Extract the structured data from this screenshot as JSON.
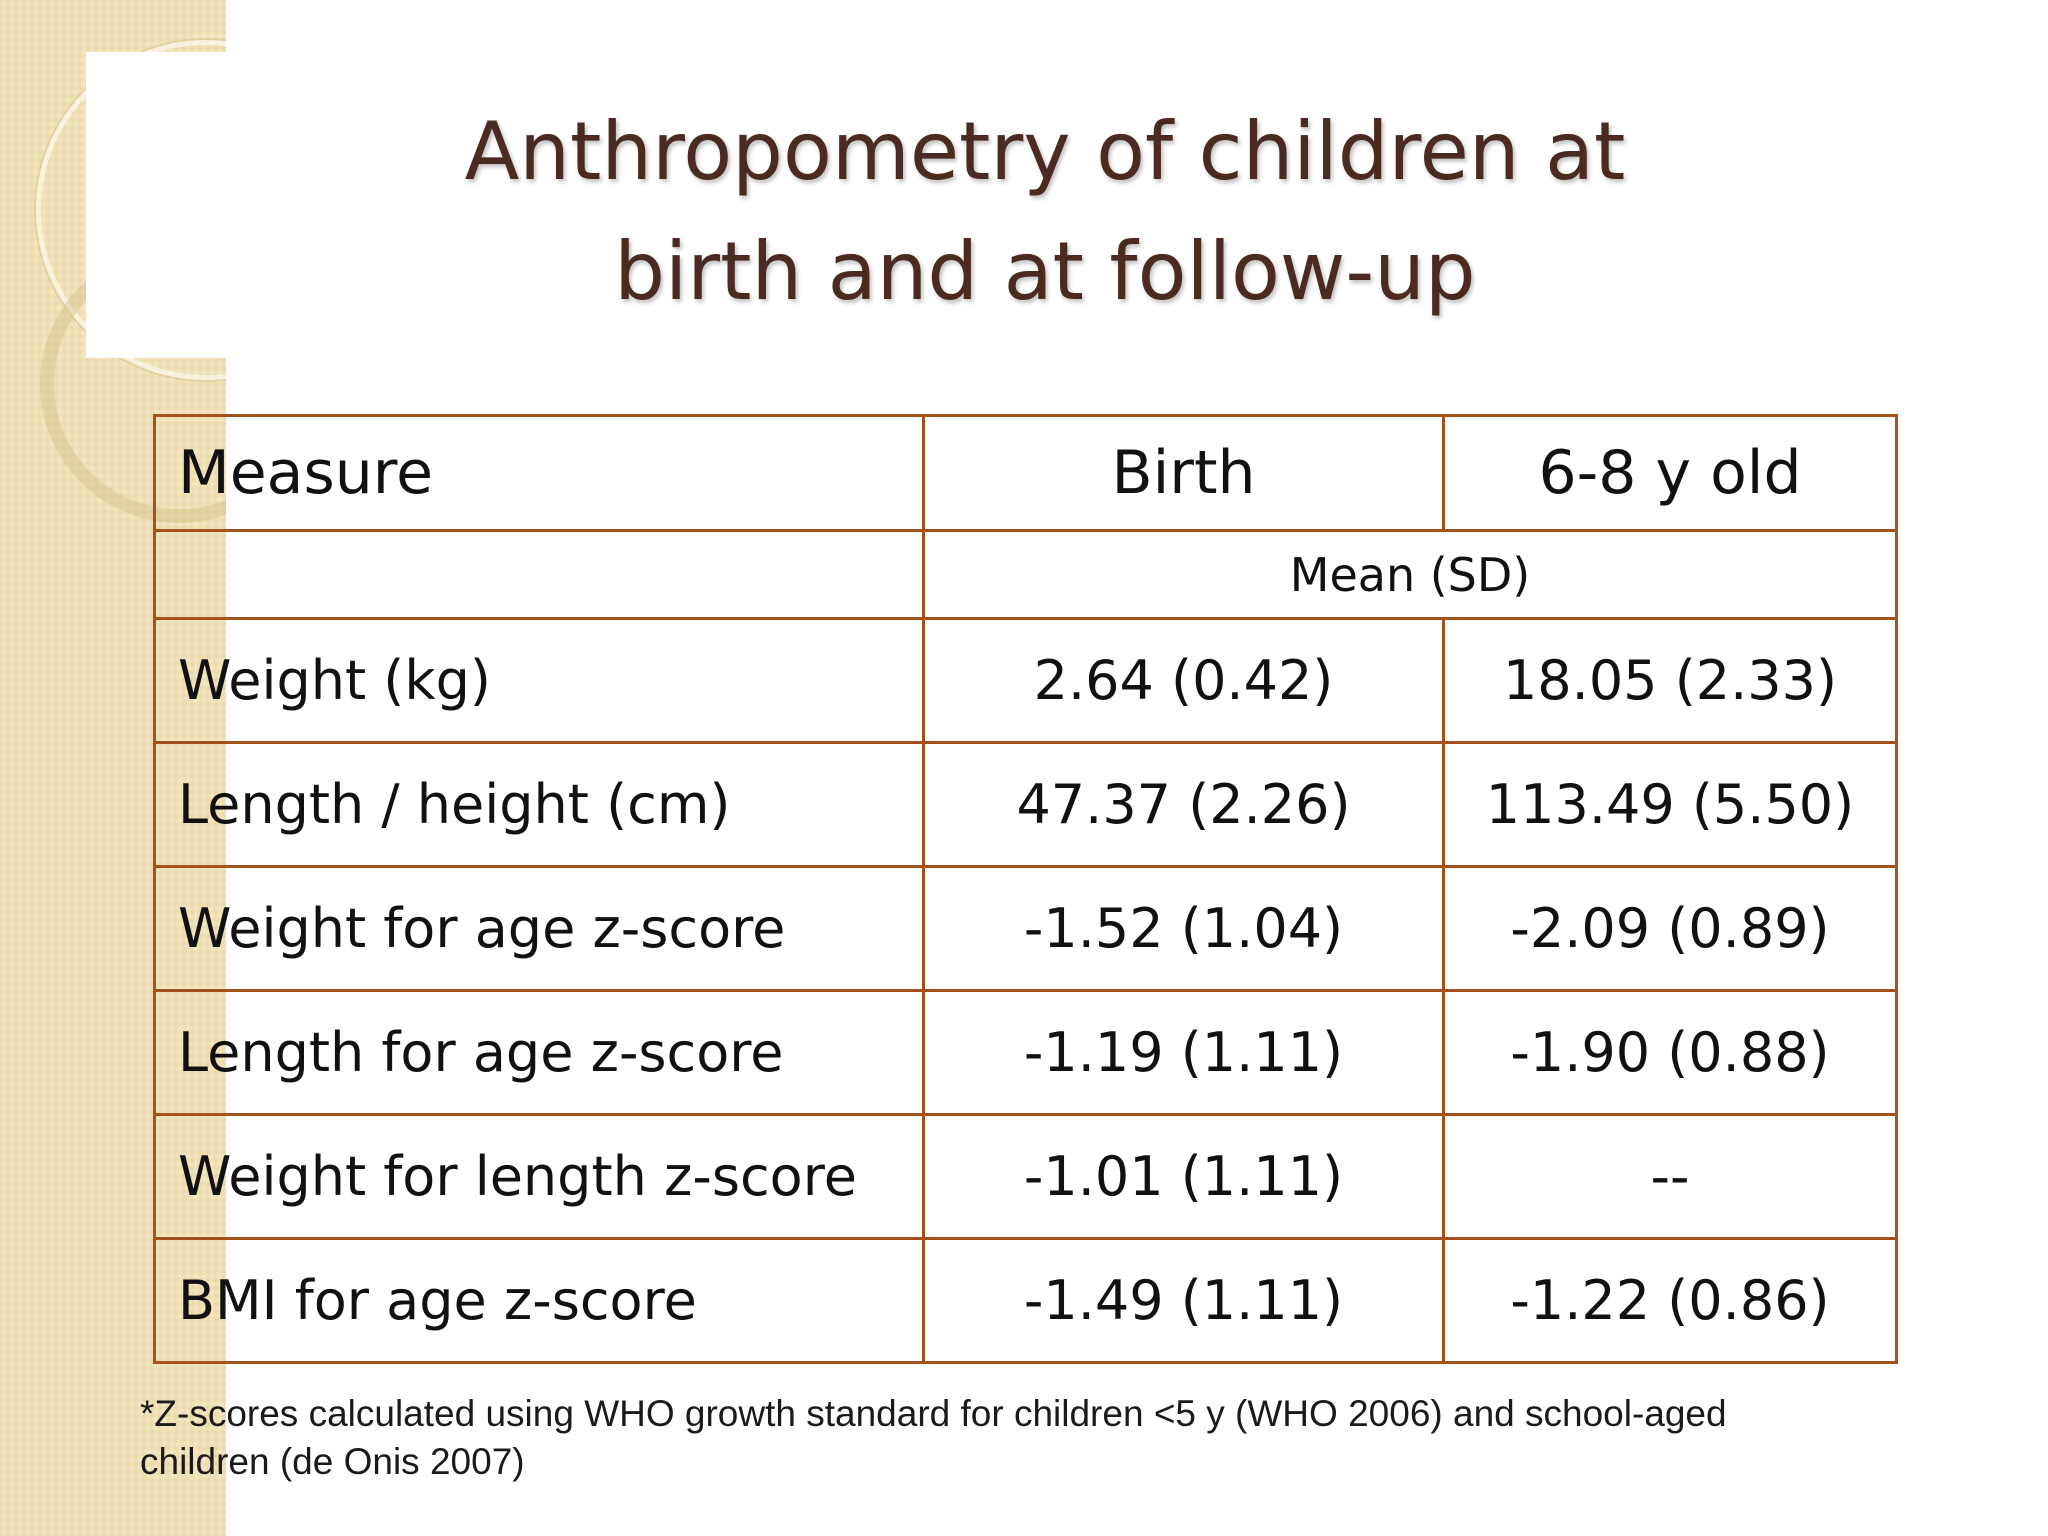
{
  "slide": {
    "title_line1": "Anthropometry of children at",
    "title_line2": "birth and at follow-up"
  },
  "table": {
    "headers": [
      "Measure",
      "Birth",
      "6-8 y old"
    ],
    "subheader": "Mean (SD)",
    "rows": [
      {
        "measure": "Weight (kg)",
        "birth": "2.64 (0.42)",
        "follow_up": "18.05 (2.33)"
      },
      {
        "measure": "Length / height (cm)",
        "birth": "47.37 (2.26)",
        "follow_up": "113.49 (5.50)"
      },
      {
        "measure": "Weight for age z-score",
        "birth": "-1.52 (1.04)",
        "follow_up": "-2.09 (0.89)"
      },
      {
        "measure": "Length for age z-score",
        "birth": "-1.19 (1.11)",
        "follow_up": "-1.90 (0.88)"
      },
      {
        "measure": "Weight for length z-score",
        "birth": "-1.01 (1.11)",
        "follow_up": "--"
      },
      {
        "measure": "BMI for age z-score",
        "birth": "-1.49 (1.11)",
        "follow_up": "-1.22 (0.86)"
      }
    ]
  },
  "footnote": {
    "line1": "*Z-scores calculated using WHO growth standard for children <5 y (WHO 2006) and school-aged",
    "line2": "children (de Onis 2007)"
  },
  "colors": {
    "title": "#4a2a21",
    "table_border": "#a4521c",
    "side_strip": "#efe0b6"
  }
}
